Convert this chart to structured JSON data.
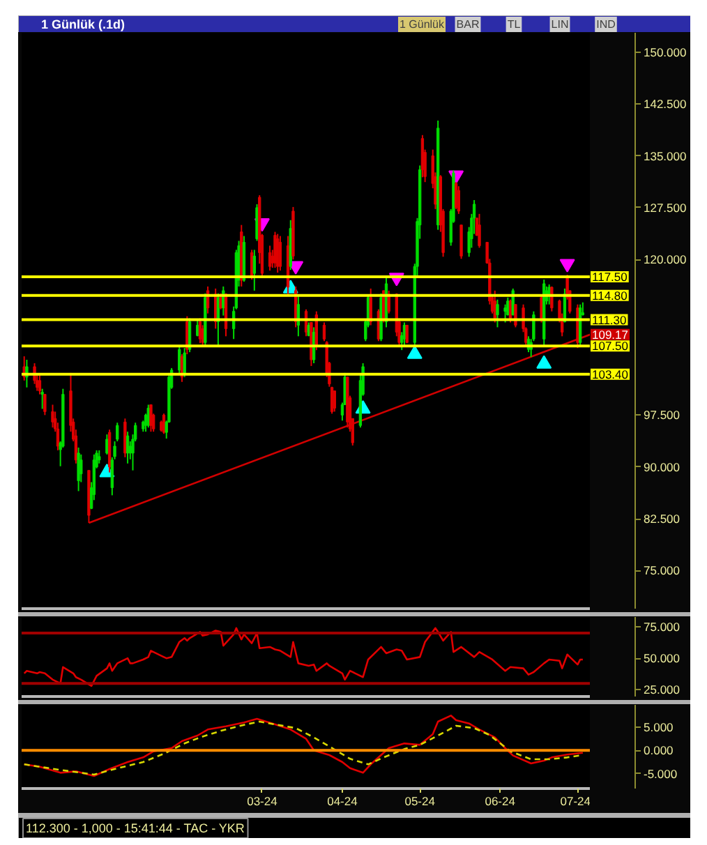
{
  "chart_data": [
    {
      "type": "candlestick",
      "title": "1 Günlük (.1d)",
      "annotations": [
        "1 Günlük",
        "BAR",
        "TL",
        "LIN",
        "IND"
      ],
      "x": [
        "2023-11-30",
        "2023-12-01",
        "2023-12-04",
        "2023-12-05",
        "2023-12-06",
        "2023-12-07",
        "2023-12-08",
        "2023-12-11",
        "2023-12-12",
        "2023-12-13",
        "2023-12-14",
        "2023-12-15",
        "2023-12-18",
        "2023-12-19",
        "2023-12-20",
        "2023-12-21",
        "2023-12-22",
        "2023-12-25",
        "2023-12-26",
        "2023-12-27",
        "2023-12-28",
        "2023-12-29",
        "2024-01-01",
        "2024-01-02",
        "2024-01-03",
        "2024-01-04",
        "2024-01-05",
        "2024-01-08",
        "2024-01-09",
        "2024-01-10",
        "2024-01-11",
        "2024-01-12",
        "2024-01-15",
        "2024-01-16",
        "2024-01-17",
        "2024-01-18",
        "2024-01-19",
        "2024-01-22",
        "2024-01-23",
        "2024-01-24",
        "2024-01-25",
        "2024-01-26",
        "2024-01-29",
        "2024-01-30",
        "2024-01-31",
        "2024-02-01",
        "2024-02-02",
        "2024-02-05",
        "2024-02-06",
        "2024-02-07",
        "2024-02-08",
        "2024-02-09",
        "2024-02-12",
        "2024-02-13",
        "2024-02-14",
        "2024-02-15",
        "2024-02-16",
        "2024-02-19",
        "2024-02-20",
        "2024-02-21",
        "2024-02-22",
        "2024-02-23",
        "2024-02-26",
        "2024-02-27",
        "2024-02-28",
        "2024-02-29",
        "2024-03-01",
        "2024-03-04",
        "2024-03-05",
        "2024-03-06",
        "2024-03-07",
        "2024-03-08",
        "2024-03-11",
        "2024-03-12",
        "2024-03-13",
        "2024-03-14",
        "2024-03-15",
        "2024-03-18",
        "2024-03-19",
        "2024-03-20",
        "2024-03-21",
        "2024-03-22",
        "2024-03-25",
        "2024-03-26",
        "2024-03-27",
        "2024-03-28",
        "2024-03-29",
        "2024-04-01",
        "2024-04-02",
        "2024-04-03",
        "2024-04-04",
        "2024-04-05",
        "2024-04-08",
        "2024-04-09",
        "2024-04-10",
        "2024-04-11",
        "2024-04-12",
        "2024-04-15",
        "2024-04-16",
        "2024-04-17",
        "2024-04-18",
        "2024-04-19",
        "2024-04-22",
        "2024-04-23",
        "2024-04-24",
        "2024-04-25",
        "2024-04-26",
        "2024-04-29",
        "2024-04-30",
        "2024-05-01",
        "2024-05-02",
        "2024-05-03",
        "2024-05-06",
        "2024-05-07",
        "2024-05-08",
        "2024-05-09",
        "2024-05-10",
        "2024-05-13",
        "2024-05-14",
        "2024-05-15",
        "2024-05-16",
        "2024-05-17",
        "2024-05-20",
        "2024-05-21",
        "2024-05-22",
        "2024-05-23",
        "2024-05-24",
        "2024-05-27",
        "2024-05-28",
        "2024-05-29",
        "2024-05-30",
        "2024-05-31",
        "2024-06-03",
        "2024-06-04",
        "2024-06-05",
        "2024-06-06",
        "2024-06-07",
        "2024-06-10",
        "2024-06-11",
        "2024-06-12",
        "2024-06-13",
        "2024-06-14",
        "2024-06-17",
        "2024-06-18",
        "2024-06-19",
        "2024-06-20",
        "2024-06-21",
        "2024-06-24",
        "2024-06-25",
        "2024-06-26",
        "2024-06-27",
        "2024-06-28",
        "2024-07-01",
        "2024-07-02",
        "2024-07-03"
      ],
      "ohlc": [
        [
          104.5,
          106,
          102.5,
          103
        ],
        [
          103,
          105.5,
          101.5,
          104.5
        ],
        [
          104.5,
          105,
          102,
          102.5
        ],
        [
          102.5,
          103.5,
          101,
          101.5
        ],
        [
          102.5,
          103.5,
          100.5,
          101
        ],
        [
          100.5,
          101.3,
          98.4,
          100.8
        ],
        [
          100.5,
          100.5,
          97.5,
          98
        ],
        [
          98,
          99,
          95.7,
          96.5
        ],
        [
          97,
          98,
          95.1,
          95.5
        ],
        [
          95.5,
          96.4,
          92.4,
          93
        ],
        [
          92.5,
          93.7,
          90.1,
          93.5
        ],
        [
          93,
          101.3,
          92.8,
          100.5
        ],
        [
          101,
          103.6,
          95.1,
          96
        ],
        [
          96.5,
          97,
          93.7,
          94
        ],
        [
          94.5,
          95.4,
          90.5,
          91
        ],
        [
          88,
          92.8,
          86.5,
          92
        ],
        [
          89,
          91.8,
          87.8,
          91
        ],
        [
          89.5,
          89.5,
          81.9,
          83
        ],
        [
          84,
          87.8,
          83.9,
          87
        ],
        [
          86,
          91.8,
          85.2,
          91
        ],
        [
          90,
          92.4,
          89.8,
          92
        ],
        [
          91,
          92.4,
          90.5,
          91.5
        ],
        [
          92,
          94.7,
          91.8,
          94
        ],
        [
          95,
          95.4,
          89.2,
          90
        ],
        [
          87,
          91.4,
          85.9,
          91
        ],
        [
          91.5,
          93.7,
          91.1,
          93
        ],
        [
          94,
          96.4,
          93.7,
          96
        ],
        [
          96.5,
          97,
          91.4,
          92
        ],
        [
          92,
          95.1,
          90.5,
          94.5
        ],
        [
          92,
          93.7,
          91.1,
          93
        ],
        [
          92,
          94.7,
          89.5,
          94
        ],
        [
          94,
          96.4,
          93.7,
          96
        ],
        [
          95.5,
          96.7,
          95.1,
          96.5
        ],
        [
          96,
          97.7,
          95.1,
          97.5
        ],
        [
          96,
          99,
          95.7,
          98.5
        ],
        [
          99,
          99,
          95.1,
          96
        ],
        [
          97.5,
          97.7,
          95.1,
          95.5
        ],
        [
          96.5,
          96.7,
          95.1,
          95.3
        ],
        [
          97.5,
          97.7,
          94.8,
          95
        ],
        [
          95,
          96.7,
          94.1,
          96.5
        ],
        [
          96.5,
          103.6,
          96.4,
          103
        ],
        [
          101.5,
          104.3,
          101.3,
          104
        ],
        [
          104,
          107.6,
          103.3,
          107
        ],
        [
          106,
          106.3,
          102.3,
          103
        ],
        [
          103.5,
          107.2,
          103,
          106.5
        ],
        [
          111,
          111.8,
          106.3,
          107
        ],
        [
          107,
          111.5,
          106.6,
          111
        ],
        [
          109,
          111.2,
          108.9,
          110.5
        ],
        [
          111,
          111.5,
          107.9,
          108.5
        ],
        [
          110,
          110.5,
          107.6,
          108
        ],
        [
          108,
          115.1,
          107.6,
          114.5
        ],
        [
          115.5,
          116.1,
          112.2,
          113
        ],
        [
          115,
          115.8,
          110,
          111
        ],
        [
          111,
          115.1,
          107.6,
          114.5
        ],
        [
          114.5,
          115.1,
          112.8,
          113
        ],
        [
          113,
          116.1,
          111.9,
          115.5
        ],
        [
          115,
          115.1,
          108.9,
          110
        ],
        [
          110,
          113.2,
          108.5,
          112.5
        ],
        [
          113,
          121.4,
          112.8,
          121
        ],
        [
          117,
          122.7,
          116.1,
          122
        ],
        [
          124,
          125,
          116.1,
          117
        ],
        [
          117,
          123.4,
          116.8,
          122.5
        ],
        [
          121,
          121.4,
          117.1,
          117.5
        ],
        [
          118,
          121.4,
          115.5,
          120.5
        ],
        [
          123,
          128,
          122.7,
          127.5
        ],
        [
          129,
          129.3,
          119.4,
          121
        ],
        [
          123.5,
          123.7,
          117.4,
          118
        ],
        [
          121,
          122,
          118.4,
          119
        ],
        [
          120.5,
          121.4,
          118.8,
          119.5
        ],
        [
          123.5,
          124,
          118.8,
          119.5
        ],
        [
          123,
          123.7,
          118.1,
          119
        ],
        [
          122.5,
          123.4,
          118.4,
          119
        ],
        [
          122,
          123.4,
          114.8,
          116
        ],
        [
          119,
          125.7,
          118.5,
          124.5
        ],
        [
          127,
          127.6,
          120,
          120.5
        ],
        [
          115.5,
          116.1,
          110.2,
          111
        ],
        [
          110.5,
          114.8,
          108.9,
          113.5
        ],
        [
          112.5,
          112.8,
          108.9,
          109.5
        ],
        [
          109,
          110.9,
          108.9,
          110.5
        ],
        [
          110.9,
          110.9,
          104.6,
          105.5
        ],
        [
          105.5,
          110.2,
          105,
          109.5
        ],
        [
          112,
          112.5,
          106.9,
          107.5
        ],
        [
          110.5,
          110.9,
          108.2,
          108.5
        ],
        [
          108,
          108.2,
          103,
          103.5
        ],
        [
          105,
          105.2,
          101.6,
          102
        ],
        [
          101.5,
          101.6,
          97.7,
          98
        ],
        [
          101,
          101,
          98,
          98.5
        ],
        [
          97.5,
          99.3,
          96.7,
          99
        ],
        [
          99,
          103.6,
          99,
          103
        ],
        [
          103,
          103,
          95.7,
          96.5
        ],
        [
          100,
          100.3,
          95.1,
          95.5
        ],
        [
          97,
          97,
          93.1,
          93.5
        ],
        [
          96,
          103.3,
          95.7,
          102.5
        ],
        [
          100.5,
          105,
          100.3,
          104.5
        ],
        [
          108.5,
          111.2,
          108.2,
          111
        ],
        [
          110.5,
          114.8,
          110.2,
          114.5
        ],
        [
          114.5,
          115.8,
          110.5,
          111
        ],
        [
          112.5,
          112.8,
          108.2,
          108.5
        ],
        [
          108.5,
          115.1,
          108.2,
          114.5
        ],
        [
          115.5,
          115.5,
          110.9,
          111.5
        ],
        [
          111,
          117.4,
          110.2,
          116.5
        ],
        [
          115,
          115.5,
          112.2,
          112.5
        ],
        [
          115,
          115.1,
          108.9,
          109.5
        ],
        [
          111,
          111.5,
          107.6,
          108
        ],
        [
          108,
          109.5,
          106.9,
          109
        ],
        [
          108.5,
          110.9,
          107.6,
          110.5
        ],
        [
          110.5,
          110.5,
          107.9,
          108
        ],
        [
          108,
          119.4,
          107.6,
          119
        ],
        [
          119,
          126,
          117.4,
          125.5
        ],
        [
          125,
          133.6,
          123,
          133
        ],
        [
          137.5,
          138,
          131.9,
          133
        ],
        [
          135.5,
          135.9,
          131.2,
          132
        ],
        [
          135,
          135.9,
          130.3,
          131
        ],
        [
          132,
          132.6,
          127.3,
          128
        ],
        [
          125,
          140.1,
          124.3,
          139
        ],
        [
          132,
          132.2,
          124,
          125
        ],
        [
          127,
          127.3,
          120.4,
          121
        ],
        [
          122.5,
          127.3,
          122,
          127
        ],
        [
          125.5,
          132.9,
          125.3,
          132.5
        ],
        [
          131,
          131.2,
          127.3,
          127.5
        ],
        [
          130,
          130.6,
          126.6,
          127
        ],
        [
          125,
          125,
          120.1,
          120.5
        ],
        [
          121,
          124.7,
          120.4,
          124
        ],
        [
          123,
          126.6,
          121.7,
          126
        ],
        [
          126,
          128.6,
          123.7,
          128
        ],
        [
          126,
          126,
          123.4,
          123.5
        ],
        [
          125,
          126.6,
          121.7,
          122
        ],
        [
          122.5,
          122.5,
          119.4,
          119.5
        ],
        [
          119.5,
          120.1,
          113.5,
          114
        ],
        [
          114.5,
          114.8,
          112.2,
          112.5
        ],
        [
          114,
          115.5,
          110.9,
          111.5
        ],
        [
          112,
          114.2,
          110.2,
          113.5
        ],
        [
          112.5,
          113.5,
          110.9,
          113
        ],
        [
          112,
          114.5,
          111.9,
          114
        ],
        [
          114,
          114.2,
          110.9,
          111.5
        ],
        [
          112,
          115.8,
          111.9,
          115.5
        ],
        [
          113.5,
          113.5,
          110.2,
          110.5
        ],
        [
          113,
          113.5,
          109.5,
          110
        ],
        [
          110,
          110.2,
          107.6,
          108
        ],
        [
          107,
          108.9,
          106.6,
          108.5
        ],
        [
          107,
          108.5,
          105.9,
          108
        ],
        [
          108.5,
          112.5,
          108.2,
          112
        ],
        [
          114.5,
          114.8,
          110.9,
          111.5
        ],
        [
          108.5,
          117.1,
          107.6,
          116.5
        ],
        [
          114,
          116.1,
          113.5,
          115.5
        ],
        [
          115,
          116.4,
          113.5,
          116
        ],
        [
          116,
          116.1,
          112.5,
          113
        ],
        [
          114,
          114.2,
          110.9,
          111.5
        ],
        [
          111.5,
          112.2,
          108.9,
          109.5
        ],
        [
          111,
          115.8,
          110.9,
          115
        ],
        [
          117.5,
          117.8,
          114.2,
          114.5
        ],
        [
          115.5,
          115.5,
          112.2,
          112.5
        ],
        [
          113,
          113.5,
          107.2,
          108
        ],
        [
          108,
          113.5,
          107.6,
          113
        ],
        [
          112,
          113.8,
          111.9,
          112.3
        ]
      ],
      "colors": [
        "#e00000",
        "#00dd00",
        "#e00000",
        "#e00000",
        "#e00000",
        "#00dd00",
        "#e00000",
        "#e00000",
        "#e00000",
        "#e00000",
        "#00dd00",
        "#00dd00",
        "#e00000",
        "#e00000",
        "#e00000",
        "#00dd00",
        "#00dd00",
        "#e00000",
        "#00dd00",
        "#00dd00",
        "#00dd00",
        "#00dd00",
        "#00dd00",
        "#e00000",
        "#00dd00",
        "#00dd00",
        "#00dd00",
        "#e00000",
        "#00dd00",
        "#00dd00",
        "#00dd00",
        "#00dd00",
        "#00dd00",
        "#00dd00",
        "#00dd00",
        "#e00000",
        "#e00000",
        "#e00000",
        "#e00000",
        "#00dd00",
        "#00dd00",
        "#00dd00",
        "#00dd00",
        "#e00000",
        "#00dd00",
        "#e00000",
        "#00dd00",
        "#00dd00",
        "#e00000",
        "#e00000",
        "#00dd00",
        "#e00000",
        "#e00000",
        "#00dd00",
        "#e00000",
        "#00dd00",
        "#e00000",
        "#00dd00",
        "#00dd00",
        "#00dd00",
        "#e00000",
        "#00dd00",
        "#e00000",
        "#00dd00",
        "#00dd00",
        "#e00000",
        "#e00000",
        "#e00000",
        "#e00000",
        "#e00000",
        "#e00000",
        "#e00000",
        "#e00000",
        "#00dd00",
        "#e00000",
        "#e00000",
        "#00dd00",
        "#e00000",
        "#00dd00",
        "#e00000",
        "#00dd00",
        "#e00000",
        "#e00000",
        "#e00000",
        "#e00000",
        "#e00000",
        "#e00000",
        "#00dd00",
        "#00dd00",
        "#e00000",
        "#e00000",
        "#e00000",
        "#00dd00",
        "#00dd00",
        "#00dd00",
        "#00dd00",
        "#e00000",
        "#e00000",
        "#00dd00",
        "#e00000",
        "#00dd00",
        "#e00000",
        "#e00000",
        "#e00000",
        "#00dd00",
        "#00dd00",
        "#e00000",
        "#00dd00",
        "#00dd00",
        "#00dd00",
        "#e00000",
        "#e00000",
        "#e00000",
        "#e00000",
        "#00dd00",
        "#e00000",
        "#e00000",
        "#00dd00",
        "#00dd00",
        "#e00000",
        "#e00000",
        "#e00000",
        "#00dd00",
        "#00dd00",
        "#00dd00",
        "#e00000",
        "#e00000",
        "#e00000",
        "#e00000",
        "#e00000",
        "#e00000",
        "#00dd00",
        "#00dd00",
        "#00dd00",
        "#e00000",
        "#00dd00",
        "#e00000",
        "#e00000",
        "#e00000",
        "#00dd00",
        "#00dd00",
        "#00dd00",
        "#e00000",
        "#00dd00",
        "#00dd00",
        "#00dd00",
        "#e00000",
        "#e00000",
        "#e00000",
        "#00dd00",
        "#e00000",
        "#e00000",
        "#e00000",
        "#00dd00",
        "#00dd00"
      ],
      "series": [
        {
          "type": "line",
          "color": "#d00000",
          "x": [
            "2023-12-25",
            "2024-07-06"
          ],
          "values": [
            81.9,
            109.17
          ],
          "value_labels": [
            null,
            "109.17"
          ]
        },
        {
          "type": "scatter",
          "marker": "triangle",
          "color": "#ff00ff",
          "x": [
            "2024-03-01",
            "2024-03-14",
            "2024-04-22",
            "2024-05-15",
            "2024-06-27"
          ],
          "values": [
            125.3,
            119.1,
            117.4,
            132.2,
            119.4
          ]
        },
        {
          "type": "scatter",
          "marker": "triangle",
          "color": "#00ffff",
          "x": [
            "2024-01-01",
            "2024-03-12",
            "2024-04-09",
            "2024-04-29",
            "2024-06-18"
          ],
          "values": [
            89.2,
            115.8,
            98.4,
            106.3,
            104.9
          ]
        }
      ],
      "ref_lines": [
        {
          "axis": "y",
          "value": 117.5,
          "label": "117.50",
          "color": "#ffff00"
        },
        {
          "axis": "y",
          "value": 114.8,
          "label": "114.80",
          "color": "#ffff00"
        },
        {
          "axis": "y",
          "value": 111.3,
          "label": "111.30",
          "color": "#ffff00"
        },
        {
          "axis": "y",
          "value": 107.5,
          "label": "107.50",
          "color": "#ffff00"
        },
        {
          "axis": "y",
          "value": 103.4,
          "label": "103.40",
          "color": "#ffff00"
        }
      ],
      "xlim": [
        "2023-11-29",
        "2024-07-06"
      ],
      "ylim": [
        69.5,
        152.8
      ],
      "yticks": [
        {
          "value": 150,
          "label": "150.000"
        },
        {
          "value": 142.5,
          "label": "142.500"
        },
        {
          "value": 135,
          "label": "135.000"
        },
        {
          "value": 127.5,
          "label": "127.500"
        },
        {
          "value": 120,
          "label": "120.000"
        },
        {
          "value": 97.5,
          "label": "97.500"
        },
        {
          "value": 90,
          "label": "90.000"
        },
        {
          "value": 82.5,
          "label": "82.500"
        },
        {
          "value": 75,
          "label": "75.000"
        }
      ],
      "tick_labels": "y"
    },
    {
      "type": "line",
      "x": [
        "2023-11-30",
        "2023-12-01",
        "2023-12-05",
        "2023-12-06",
        "2023-12-08",
        "2023-12-11",
        "2023-12-13",
        "2023-12-14",
        "2023-12-15",
        "2023-12-19",
        "2023-12-20",
        "2023-12-22",
        "2023-12-26",
        "2023-12-28",
        "2024-01-01",
        "2024-01-02",
        "2024-01-03",
        "2024-01-05",
        "2024-01-09",
        "2024-01-10",
        "2024-01-11",
        "2024-01-15",
        "2024-01-17",
        "2024-01-18",
        "2024-01-22",
        "2024-01-24",
        "2024-01-26",
        "2024-01-29",
        "2024-01-31",
        "2024-02-01",
        "2024-02-02",
        "2024-02-06",
        "2024-02-07",
        "2024-02-09",
        "2024-02-12",
        "2024-02-14",
        "2024-02-15",
        "2024-02-19",
        "2024-02-20",
        "2024-02-22",
        "2024-02-23",
        "2024-02-26",
        "2024-02-28",
        "2024-02-29",
        "2024-03-04",
        "2024-03-06",
        "2024-03-08",
        "2024-03-12",
        "2024-03-13",
        "2024-03-15",
        "2024-03-19",
        "2024-03-21",
        "2024-03-22",
        "2024-03-26",
        "2024-03-27",
        "2024-04-01",
        "2024-04-02",
        "2024-04-04",
        "2024-04-09",
        "2024-04-11",
        "2024-04-16",
        "2024-04-18",
        "2024-04-22",
        "2024-04-24",
        "2024-04-26",
        "2024-05-01",
        "2024-05-03",
        "2024-05-07",
        "2024-05-08",
        "2024-05-10",
        "2024-05-13",
        "2024-05-14",
        "2024-05-17",
        "2024-05-22",
        "2024-05-24",
        "2024-05-29",
        "2024-06-03",
        "2024-06-05",
        "2024-06-10",
        "2024-06-12",
        "2024-06-14",
        "2024-06-18",
        "2024-06-20",
        "2024-06-24",
        "2024-06-25",
        "2024-06-27",
        "2024-06-28",
        "2024-07-01",
        "2024-07-02",
        "2024-07-03"
      ],
      "series": [
        {
          "color": "#e00000",
          "values": [
            38,
            40,
            38,
            39,
            38,
            33,
            31,
            30,
            43,
            38,
            35,
            33,
            28,
            36,
            42,
            46,
            40,
            46,
            50,
            46,
            46,
            49,
            51,
            56,
            52,
            50,
            51,
            63,
            66,
            64,
            66,
            71,
            68,
            69,
            72,
            71,
            60,
            69,
            74,
            65,
            69,
            62,
            70,
            58,
            59,
            57,
            56,
            51,
            63,
            46,
            44,
            45,
            40,
            46,
            44,
            38,
            33,
            40,
            35,
            49,
            59,
            54,
            57,
            56,
            49,
            51,
            63,
            74,
            71,
            64,
            71,
            55,
            59,
            51,
            55,
            49,
            40,
            43,
            42,
            37,
            39,
            46,
            49,
            48,
            42,
            53,
            51,
            45,
            49,
            49
          ]
        }
      ],
      "ref_lines": [
        {
          "axis": "y",
          "value": 70,
          "color": "#a00000"
        },
        {
          "axis": "y",
          "value": 30,
          "color": "#a00000"
        }
      ],
      "xlim": [
        "2023-11-29",
        "2024-07-06"
      ],
      "ylim": [
        19.6,
        82.8
      ],
      "yticks": [
        {
          "value": 75,
          "label": "75.000"
        },
        {
          "value": 50,
          "label": "50.000"
        },
        {
          "value": 25,
          "label": "25.000"
        }
      ],
      "tick_labels": "y"
    },
    {
      "type": "line",
      "annotations": [
        "112.300 - 1,000 - 15:41:44 - TAC - YKR"
      ],
      "series": [
        {
          "color": "#e00000",
          "x": [
            "2023-11-30",
            "2023-12-06",
            "2023-12-14",
            "2023-12-20",
            "2023-12-27",
            "2024-01-02",
            "2024-01-09",
            "2024-01-15",
            "2024-01-19",
            "2024-01-26",
            "2024-01-30",
            "2024-02-05",
            "2024-02-09",
            "2024-02-16",
            "2024-02-23",
            "2024-02-28",
            "2024-03-05",
            "2024-03-12",
            "2024-03-18",
            "2024-03-21",
            "2024-03-27",
            "2024-04-01",
            "2024-04-04",
            "2024-04-09",
            "2024-04-12",
            "2024-04-19",
            "2024-04-25",
            "2024-05-01",
            "2024-05-06",
            "2024-05-08",
            "2024-05-13",
            "2024-05-15",
            "2024-05-20",
            "2024-05-24",
            "2024-05-30",
            "2024-06-03",
            "2024-06-06",
            "2024-06-13",
            "2024-06-18",
            "2024-06-21",
            "2024-06-27",
            "2024-07-03"
          ],
          "values": [
            -3.0,
            -3.5,
            -4.8,
            -4.5,
            -5.5,
            -4.0,
            -2.5,
            -1.5,
            -0.2,
            0.5,
            2.0,
            3.2,
            4.5,
            5.2,
            6.0,
            6.8,
            5.8,
            4.5,
            2.5,
            0,
            -1.0,
            -2.5,
            -3.8,
            -4.8,
            -3.0,
            0.5,
            1.5,
            1.2,
            3.5,
            6.2,
            7.5,
            6.5,
            5.8,
            4.5,
            2.8,
            0.5,
            -1.1,
            -2.8,
            -2.2,
            -1.5,
            -0.9,
            -0.5
          ]
        },
        {
          "color": "#d8d800",
          "line_style": "dashed",
          "x": [
            "2023-11-30",
            "2023-12-14",
            "2023-12-27",
            "2024-01-04",
            "2024-01-15",
            "2024-01-23",
            "2024-01-31",
            "2024-02-06",
            "2024-02-14",
            "2024-02-23",
            "2024-02-29",
            "2024-03-07",
            "2024-03-14",
            "2024-03-21",
            "2024-03-29",
            "2024-04-04",
            "2024-04-11",
            "2024-04-17",
            "2024-04-25",
            "2024-05-01",
            "2024-05-08",
            "2024-05-15",
            "2024-05-22",
            "2024-05-28",
            "2024-06-05",
            "2024-06-13",
            "2024-06-20",
            "2024-06-27",
            "2024-07-03"
          ],
          "values": [
            -3.0,
            -4.2,
            -5.2,
            -4.0,
            -2.5,
            -0.7,
            1.5,
            2.8,
            4.2,
            5.5,
            6.2,
            5.5,
            4.8,
            2.8,
            0.2,
            -1.8,
            -3.0,
            -1.5,
            0.3,
            1.2,
            3.2,
            5.3,
            4.8,
            3.3,
            -0.2,
            -1.9,
            -1.9,
            -1.5,
            -1.0
          ]
        }
      ],
      "ref_lines": [
        {
          "axis": "y",
          "value": 0,
          "color": "#ff8c00"
        }
      ],
      "xlim": [
        "2023-11-29",
        "2024-07-06"
      ],
      "ylim": [
        -8.2,
        9.8
      ],
      "xticks": [
        {
          "value": "2024-03-01",
          "label": "03-24"
        },
        {
          "value": "2024-04-01",
          "label": "04-24"
        },
        {
          "value": "2024-05-01",
          "label": "05-24"
        },
        {
          "value": "2024-06-01",
          "label": "06-24"
        },
        {
          "value": "2024-07-01",
          "label": "07-24"
        }
      ],
      "yticks": [
        {
          "value": 5,
          "label": "5.000"
        },
        {
          "value": 0,
          "label": "0.000"
        },
        {
          "value": -5,
          "label": "-5.000"
        }
      ]
    }
  ]
}
